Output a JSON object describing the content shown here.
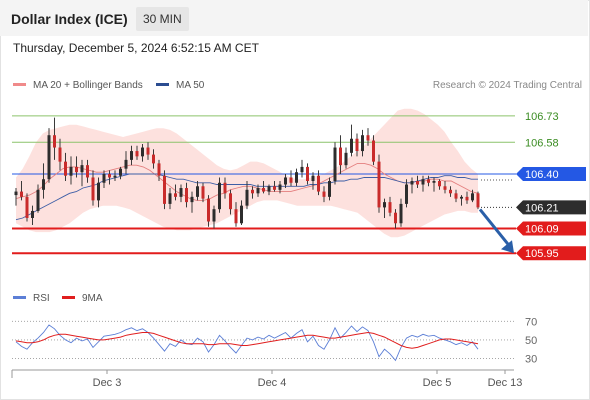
{
  "header": {
    "title": "Dollar Index (ICE)",
    "timeframe": "30 MIN"
  },
  "datetime": "Thursday, December 5, 2024 6:52:15 AM CET",
  "legend": {
    "items": [
      {
        "label": "MA 20 + Bollinger Bands",
        "color": "#f08a8a"
      },
      {
        "label": "MA 50",
        "color": "#2b4d91"
      }
    ],
    "credit": "Research © 2024 Trading Central"
  },
  "rsi_legend": {
    "items": [
      {
        "label": "RSI",
        "color": "#5c7fd6"
      },
      {
        "label": "9MA",
        "color": "#e01e1e"
      }
    ]
  },
  "chart_data": [
    {
      "type": "candlestick",
      "title": "Dollar Index (ICE)",
      "ylim": [
        105.9,
        106.82
      ],
      "x_ticks": [
        "Dec 3",
        "Dec 4",
        "Dec 5",
        "Dec 13"
      ],
      "candles": [
        [
          106.28,
          106.32,
          106.22,
          106.3
        ],
        [
          106.3,
          106.36,
          106.25,
          106.27
        ],
        [
          106.27,
          106.29,
          106.13,
          106.15
        ],
        [
          106.15,
          106.22,
          106.11,
          106.19
        ],
        [
          106.19,
          106.34,
          106.18,
          106.31
        ],
        [
          106.31,
          106.46,
          106.26,
          106.37
        ],
        [
          106.37,
          106.66,
          106.35,
          106.62
        ],
        [
          106.62,
          106.72,
          106.48,
          106.55
        ],
        [
          106.55,
          106.6,
          106.42,
          106.47
        ],
        [
          106.47,
          106.52,
          106.36,
          106.39
        ],
        [
          106.39,
          106.5,
          106.34,
          106.44
        ],
        [
          106.44,
          106.5,
          106.38,
          106.41
        ],
        [
          106.41,
          106.48,
          106.33,
          106.45
        ],
        [
          106.45,
          106.48,
          106.35,
          106.38
        ],
        [
          106.38,
          106.42,
          106.22,
          106.25
        ],
        [
          106.25,
          106.38,
          106.21,
          106.35
        ],
        [
          106.35,
          106.42,
          106.32,
          106.4
        ],
        [
          106.4,
          106.42,
          106.34,
          106.38
        ],
        [
          106.38,
          106.42,
          106.36,
          106.39
        ],
        [
          106.39,
          106.44,
          106.37,
          106.43
        ],
        [
          106.43,
          106.53,
          106.4,
          106.48
        ],
        [
          106.48,
          106.56,
          106.45,
          106.53
        ],
        [
          106.53,
          106.56,
          106.48,
          106.5
        ],
        [
          106.5,
          106.57,
          106.47,
          106.55
        ],
        [
          106.55,
          106.58,
          106.48,
          106.51
        ],
        [
          106.51,
          106.54,
          106.43,
          106.46
        ],
        [
          106.46,
          106.48,
          106.36,
          106.39
        ],
        [
          106.39,
          106.42,
          106.2,
          106.23
        ],
        [
          106.23,
          106.32,
          106.2,
          106.29
        ],
        [
          106.29,
          106.34,
          106.25,
          106.27
        ],
        [
          106.27,
          106.34,
          106.24,
          106.32
        ],
        [
          106.32,
          106.35,
          106.21,
          106.24
        ],
        [
          106.24,
          106.3,
          106.18,
          106.27
        ],
        [
          106.27,
          106.36,
          106.25,
          106.33
        ],
        [
          106.33,
          106.35,
          106.24,
          106.26
        ],
        [
          106.26,
          106.28,
          106.1,
          106.13
        ],
        [
          106.13,
          106.22,
          106.09,
          106.2
        ],
        [
          106.2,
          106.38,
          106.18,
          106.35
        ],
        [
          106.35,
          106.38,
          106.26,
          106.29
        ],
        [
          106.29,
          106.31,
          106.17,
          106.2
        ],
        [
          106.2,
          106.24,
          106.1,
          106.12
        ],
        [
          106.12,
          106.25,
          106.11,
          106.22
        ],
        [
          106.22,
          106.36,
          106.2,
          106.31
        ],
        [
          106.31,
          106.33,
          106.26,
          106.29
        ],
        [
          106.29,
          106.34,
          106.27,
          106.32
        ],
        [
          106.32,
          106.36,
          106.29,
          106.3
        ],
        [
          106.3,
          106.34,
          106.28,
          106.33
        ],
        [
          106.33,
          106.36,
          106.3,
          106.31
        ],
        [
          106.31,
          106.36,
          106.29,
          106.34
        ],
        [
          106.34,
          106.4,
          106.32,
          106.38
        ],
        [
          106.38,
          106.42,
          106.33,
          106.35
        ],
        [
          106.35,
          106.43,
          106.33,
          106.41
        ],
        [
          106.41,
          106.48,
          106.38,
          106.44
        ],
        [
          106.44,
          106.46,
          106.34,
          106.36
        ],
        [
          106.36,
          106.41,
          106.31,
          106.39
        ],
        [
          106.39,
          106.42,
          106.28,
          106.3
        ],
        [
          106.3,
          106.33,
          106.24,
          106.27
        ],
        [
          106.27,
          106.38,
          106.25,
          106.36
        ],
        [
          106.36,
          106.58,
          106.34,
          106.55
        ],
        [
          106.55,
          106.62,
          106.4,
          106.45
        ],
        [
          106.45,
          106.55,
          106.43,
          106.52
        ],
        [
          106.52,
          106.68,
          106.5,
          106.6
        ],
        [
          106.6,
          106.63,
          106.5,
          106.53
        ],
        [
          106.53,
          106.65,
          106.5,
          106.62
        ],
        [
          106.62,
          106.66,
          106.56,
          106.59
        ],
        [
          106.59,
          106.62,
          106.45,
          106.47
        ],
        [
          106.47,
          106.51,
          106.18,
          106.21
        ],
        [
          106.21,
          106.26,
          106.15,
          106.24
        ],
        [
          106.24,
          106.27,
          106.16,
          106.18
        ],
        [
          106.18,
          106.2,
          106.09,
          106.12
        ],
        [
          106.12,
          106.26,
          106.1,
          106.23
        ],
        [
          106.23,
          106.37,
          106.21,
          106.34
        ],
        [
          106.34,
          106.38,
          106.29,
          106.36
        ],
        [
          106.36,
          106.39,
          106.32,
          106.34
        ],
        [
          106.34,
          106.39,
          106.3,
          106.37
        ],
        [
          106.37,
          106.39,
          106.33,
          106.35
        ],
        [
          106.35,
          106.38,
          106.3,
          106.36
        ],
        [
          106.36,
          106.37,
          106.31,
          106.33
        ],
        [
          106.33,
          106.36,
          106.29,
          106.31
        ],
        [
          106.31,
          106.33,
          106.27,
          106.29
        ],
        [
          106.29,
          106.31,
          106.24,
          106.26
        ],
        [
          106.26,
          106.28,
          106.22,
          106.27
        ],
        [
          106.27,
          106.3,
          106.23,
          106.25
        ],
        [
          106.25,
          106.31,
          106.24,
          106.29
        ],
        [
          106.29,
          106.3,
          106.2,
          106.21
        ]
      ],
      "bollinger": {
        "upper": [
          106.38,
          106.43,
          106.5,
          106.58,
          106.63,
          106.65,
          106.66,
          106.67,
          106.68,
          106.68,
          106.67,
          106.66,
          106.65,
          106.64,
          106.63,
          106.62,
          106.61,
          106.62,
          106.63,
          106.64,
          106.65,
          106.66,
          106.66,
          106.65,
          106.63,
          106.6,
          106.57,
          106.54,
          106.51,
          106.48,
          106.45,
          106.43,
          106.42,
          106.43,
          106.45,
          106.47,
          106.47,
          106.46,
          106.44,
          106.42,
          106.4,
          106.38,
          106.37,
          106.37,
          106.38,
          106.39,
          106.4,
          106.42,
          106.44,
          106.47,
          106.5,
          106.53,
          106.56,
          106.6,
          106.64,
          106.68,
          106.72,
          106.76,
          106.77,
          106.77,
          106.76,
          106.74,
          106.71,
          106.68,
          106.64,
          106.58,
          106.53,
          106.47,
          106.43,
          106.4
        ],
        "lower": [
          106.12,
          106.1,
          106.08,
          106.07,
          106.07,
          106.07,
          106.08,
          106.1,
          106.12,
          106.15,
          106.18,
          106.2,
          106.21,
          106.22,
          106.22,
          106.22,
          106.21,
          106.2,
          106.18,
          106.16,
          106.14,
          106.12,
          106.1,
          106.09,
          106.08,
          106.08,
          106.08,
          106.09,
          106.1,
          106.11,
          106.12,
          106.14,
          106.16,
          106.18,
          106.2,
          106.22,
          106.24,
          106.25,
          106.25,
          106.25,
          106.24,
          106.23,
          106.22,
          106.22,
          106.22,
          106.22,
          106.22,
          106.22,
          106.21,
          106.2,
          106.19,
          106.18,
          106.15,
          106.12,
          106.09,
          106.06,
          106.04,
          106.04,
          106.05,
          106.07,
          106.09,
          106.11,
          106.13,
          106.15,
          106.17,
          106.18,
          106.19,
          106.19,
          106.18,
          106.18
        ]
      },
      "ma20": [
        106.26,
        106.27,
        106.28,
        106.3,
        106.33,
        106.37,
        106.4,
        106.43,
        106.44,
        106.44,
        106.43,
        106.42,
        106.41,
        106.41,
        106.42,
        106.43,
        106.44,
        106.45,
        106.45,
        106.44,
        106.42,
        106.39,
        106.36,
        106.33,
        106.3,
        106.28,
        106.26,
        106.25,
        106.25,
        106.26,
        106.28,
        106.29,
        106.31,
        106.32,
        106.33,
        106.33,
        106.32,
        106.31,
        106.3,
        106.3,
        106.3,
        106.3,
        106.31,
        106.32,
        106.33,
        106.34,
        106.36,
        106.38,
        106.4,
        106.42,
        106.44,
        106.46,
        106.46,
        106.45,
        106.43,
        106.4,
        106.38,
        106.36,
        106.35,
        106.35,
        106.36,
        106.36,
        106.37,
        106.37,
        106.36,
        106.36,
        106.34,
        106.32,
        106.3,
        106.29
      ],
      "ma50": [
        106.14,
        106.15,
        106.17,
        106.19,
        106.21,
        106.23,
        106.25,
        106.27,
        106.29,
        106.3,
        106.32,
        106.33,
        106.34,
        106.36,
        106.37,
        106.38,
        106.39,
        106.4,
        106.4,
        106.4,
        106.4,
        106.4,
        106.39,
        106.38,
        106.37,
        106.37,
        106.36,
        106.35,
        106.35,
        106.35,
        106.34,
        106.34,
        106.34,
        106.34,
        106.34,
        106.34,
        106.33,
        106.33,
        106.33,
        106.33,
        106.33,
        106.33,
        106.33,
        106.33,
        106.34,
        106.34,
        106.35,
        106.35,
        106.36,
        106.36,
        106.37,
        106.37,
        106.38,
        106.38,
        106.38,
        106.38,
        106.37,
        106.36,
        106.35,
        106.35,
        106.36,
        106.37,
        106.38,
        106.38,
        106.39,
        106.39,
        106.38,
        106.38,
        106.37,
        106.37
      ],
      "levels": [
        {
          "value": 106.73,
          "label": "106.73",
          "kind": "resistance",
          "color": "#8cc36b",
          "text_color": "#3a8c22"
        },
        {
          "value": 106.58,
          "label": "106.58",
          "kind": "resistance",
          "color": "#8cc36b",
          "text_color": "#3a8c22"
        },
        {
          "value": 106.4,
          "label": "106.40",
          "kind": "pivot",
          "color": "#2458e4",
          "text_color": "#ffffff"
        },
        {
          "value": 106.09,
          "label": "106.09",
          "kind": "support",
          "color": "#e21c1c",
          "text_color": "#ffffff"
        },
        {
          "value": 105.95,
          "label": "105.95",
          "kind": "support",
          "color": "#e21c1c",
          "text_color": "#ffffff"
        }
      ],
      "last_price": {
        "value": 106.21,
        "label": "106.21"
      },
      "forecast_arrow": {
        "from": 106.21,
        "to": 105.95,
        "color": "#2a5fa8"
      }
    },
    {
      "type": "line",
      "title": "RSI",
      "ylim": [
        22,
        80
      ],
      "y_ticks": [
        70,
        50,
        30
      ],
      "series": [
        {
          "name": "RSI",
          "color": "#5c7fd6",
          "values": [
            48,
            43,
            40,
            47,
            52,
            58,
            66,
            62,
            55,
            50,
            47,
            52,
            49,
            51,
            42,
            48,
            54,
            55,
            56,
            58,
            61,
            63,
            60,
            62,
            58,
            52,
            45,
            38,
            46,
            43,
            50,
            46,
            45,
            52,
            48,
            37,
            45,
            55,
            49,
            42,
            36,
            44,
            52,
            50,
            53,
            51,
            55,
            52,
            55,
            58,
            52,
            57,
            61,
            48,
            54,
            44,
            40,
            50,
            63,
            52,
            58,
            65,
            59,
            64,
            60,
            48,
            32,
            40,
            35,
            28,
            42,
            52,
            55,
            53,
            56,
            54,
            55,
            52,
            50,
            48,
            45,
            47,
            44,
            48,
            40
          ]
        },
        {
          "name": "9MA",
          "color": "#e01e1e",
          "values": [
            49,
            48,
            47,
            47,
            48,
            50,
            53,
            55,
            56,
            56,
            55,
            54,
            53,
            52,
            51,
            50,
            50,
            51,
            52,
            53,
            55,
            56,
            57,
            58,
            58,
            57,
            55,
            53,
            51,
            49,
            47,
            46,
            46,
            46,
            46,
            45,
            45,
            46,
            46,
            46,
            45,
            44,
            44,
            45,
            46,
            47,
            48,
            49,
            50,
            51,
            52,
            53,
            54,
            55,
            55,
            54,
            53,
            52,
            52,
            53,
            54,
            55,
            56,
            57,
            58,
            57,
            55,
            53,
            50,
            47,
            44,
            42,
            41,
            42,
            44,
            46,
            48,
            50,
            51,
            51,
            50,
            49,
            48,
            47,
            46
          ]
        }
      ]
    }
  ]
}
